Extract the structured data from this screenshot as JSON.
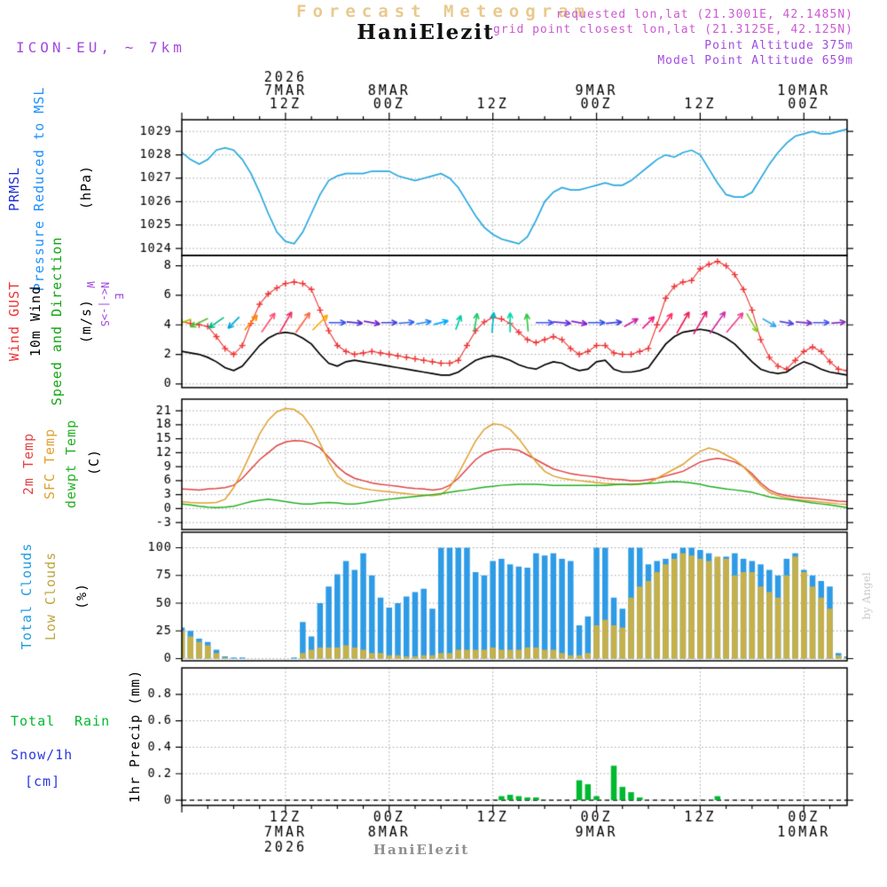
{
  "header": {
    "watermark": "Forecast Meteogram",
    "station": "HaniElezit",
    "requested": "requested lon,lat (21.3001E, 42.1485N)",
    "grid_point": "grid point closest lon,lat (21.3125E, 42.125N)",
    "point_altitude": "Point Altitude 375m",
    "model_altitude": "Model Point Altitude 659m",
    "model": "ICON-EU, ~ 7km"
  },
  "labels": {
    "pressure": {
      "l1": "PRMSL",
      "l2": "Pressure Reduced to MSL",
      "unit": "(hPa)"
    },
    "wind": {
      "l1": "Wind GUST",
      "l2": "10m Wind",
      "l3": "Speed and Direction",
      "unit": "(m/s)",
      "compass_ns": "N<-|->S",
      "compass_w": "W",
      "compass_e": "E"
    },
    "temperature": {
      "l1": "2m Temp",
      "l2": "SFC Temp",
      "l3": "dewpt Temp",
      "unit": "(C)"
    },
    "clouds": {
      "l1": "Total Clouds",
      "l2": "Low Clouds",
      "unit": "(%)"
    },
    "precip": {
      "l1": "Total",
      "l2": "Rain",
      "l3": "Snow/1h",
      "l4": "[cm]",
      "axis": "1hr Precip (mm)"
    }
  },
  "credit": "by Angel",
  "footer": {
    "station": "HaniElezit"
  },
  "time_axis": {
    "year": "2026",
    "start": "2026-03-07 00Z",
    "hours_span": 77,
    "major_tick_hours": [
      12,
      24,
      36,
      48,
      60,
      72
    ],
    "major_tick_labels": [
      "12Z",
      "00Z",
      "12Z",
      "00Z",
      "12Z",
      "00Z"
    ],
    "date_labels": [
      {
        "hour": 12,
        "text": "7MAR"
      },
      {
        "hour": 24,
        "text": "8MAR"
      },
      {
        "hour": 48,
        "text": "9MAR"
      },
      {
        "hour": 72,
        "text": "10MAR"
      }
    ],
    "minor_tick_step_hours": 3
  },
  "chart_data": [
    {
      "id": "pressure",
      "type": "line",
      "ylabel": "PRMSL Pressure Reduced to MSL (hPa)",
      "ylim": [
        1023.7,
        1029.5
      ],
      "yticks": [
        1024,
        1025,
        1026,
        1027,
        1028,
        1029
      ],
      "series": [
        {
          "name": "PRMSL",
          "color": "#29a9e0",
          "values": [
            1028.1,
            1027.8,
            1027.6,
            1027.8,
            1028.2,
            1028.3,
            1028.2,
            1027.8,
            1027.2,
            1026.4,
            1025.5,
            1024.7,
            1024.3,
            1024.2,
            1024.7,
            1025.5,
            1026.3,
            1026.9,
            1027.1,
            1027.2,
            1027.2,
            1027.2,
            1027.3,
            1027.3,
            1027.3,
            1027.1,
            1027.0,
            1026.9,
            1027.0,
            1027.1,
            1027.2,
            1027.0,
            1026.6,
            1026.0,
            1025.4,
            1024.9,
            1024.6,
            1024.4,
            1024.3,
            1024.2,
            1024.5,
            1025.2,
            1026.0,
            1026.4,
            1026.6,
            1026.5,
            1026.5,
            1026.6,
            1026.7,
            1026.8,
            1026.7,
            1026.7,
            1026.9,
            1027.2,
            1027.5,
            1027.8,
            1028.0,
            1027.9,
            1028.1,
            1028.2,
            1028.0,
            1027.4,
            1026.8,
            1026.3,
            1026.2,
            1026.2,
            1026.4,
            1027.0,
            1027.6,
            1028.1,
            1028.5,
            1028.8,
            1028.9,
            1029.0,
            1028.9,
            1028.9,
            1029.0,
            1029.1
          ]
        }
      ]
    },
    {
      "id": "wind",
      "type": "line+markers+arrows",
      "ylabel": "Wind GUST 10m Wind Speed and Direction (m/s)",
      "ylim": [
        -0.25,
        8.7
      ],
      "yticks": [
        0,
        2,
        4,
        6,
        8
      ],
      "series": [
        {
          "name": "Wind GUST",
          "color": "#ee3333",
          "marker": "+",
          "values": [
            4.2,
            4.1,
            4.0,
            3.9,
            3.2,
            2.4,
            2.0,
            2.6,
            4.1,
            5.4,
            6.1,
            6.5,
            6.8,
            6.9,
            6.8,
            6.4,
            5.0,
            3.6,
            2.6,
            2.2,
            2.0,
            2.1,
            2.2,
            2.1,
            2.0,
            1.9,
            1.8,
            1.7,
            1.6,
            1.5,
            1.4,
            1.4,
            1.6,
            2.6,
            3.6,
            4.2,
            4.5,
            4.4,
            4.1,
            3.5,
            3.0,
            2.8,
            3.0,
            3.2,
            3.0,
            2.4,
            2.0,
            2.2,
            2.6,
            2.6,
            2.1,
            2.0,
            2.0,
            2.2,
            2.4,
            4.0,
            5.8,
            6.6,
            6.9,
            7.0,
            7.8,
            8.1,
            8.3,
            8.0,
            7.4,
            6.4,
            5.0,
            3.0,
            1.8,
            1.2,
            1.0,
            1.6,
            2.2,
            2.5,
            2.2,
            1.5,
            1.0,
            0.9
          ]
        },
        {
          "name": "10m Wind Speed",
          "color": "#000000",
          "values": [
            2.2,
            2.1,
            2.0,
            1.8,
            1.5,
            1.1,
            0.9,
            1.2,
            1.9,
            2.6,
            3.1,
            3.4,
            3.5,
            3.4,
            3.1,
            2.7,
            2.0,
            1.4,
            1.2,
            1.5,
            1.6,
            1.5,
            1.4,
            1.3,
            1.2,
            1.1,
            1.0,
            0.9,
            0.8,
            0.7,
            0.6,
            0.6,
            0.8,
            1.2,
            1.6,
            1.8,
            1.9,
            1.8,
            1.6,
            1.3,
            1.1,
            1.0,
            1.3,
            1.5,
            1.4,
            1.1,
            0.9,
            1.0,
            1.5,
            1.6,
            1.0,
            0.8,
            0.8,
            0.9,
            1.1,
            1.9,
            2.7,
            3.2,
            3.5,
            3.6,
            3.7,
            3.6,
            3.4,
            3.1,
            2.7,
            2.1,
            1.5,
            1.0,
            0.8,
            0.7,
            0.8,
            1.2,
            1.5,
            1.3,
            1.0,
            0.8,
            0.7,
            0.6
          ]
        }
      ],
      "arrows": {
        "y_value": 4.15,
        "hours": [
          0,
          2,
          4,
          6,
          8,
          10,
          12,
          14,
          16,
          18,
          20,
          22,
          24,
          26,
          28,
          30,
          32,
          34,
          36,
          38,
          40,
          42,
          44,
          46,
          48,
          50,
          52,
          54,
          56,
          58,
          60,
          62,
          64,
          66,
          68,
          70,
          72,
          74,
          76
        ],
        "dir_toward_deg": [
          250,
          245,
          235,
          225,
          40,
          35,
          30,
          35,
          45,
          90,
          95,
          100,
          90,
          85,
          80,
          75,
          20,
          10,
          5,
          0,
          355,
          90,
          95,
          100,
          90,
          85,
          60,
          45,
          35,
          30,
          30,
          35,
          40,
          150,
          120,
          100,
          95,
          90,
          85
        ],
        "colors": [
          "#aacc00",
          "#55bb33",
          "#00bb88",
          "#00aadd",
          "#ff8800",
          "#ff5577",
          "#ee3366",
          "#ff6644",
          "#ffaa00",
          "#3355ee",
          "#5533cc",
          "#7722cc",
          "#4444dd",
          "#3366ee",
          "#2288ee",
          "#00aaff",
          "#00ccaa",
          "#22cc66",
          "#00bbcc",
          "#00ddaa",
          "#33cc44",
          "#4455ee",
          "#6633dd",
          "#8822cc",
          "#3355ee",
          "#4444dd",
          "#cc22aa",
          "#ee2288",
          "#ff3366",
          "#ee2255",
          "#dd2277",
          "#cc33aa",
          "#ee4488",
          "#88cc22",
          "#33aaee",
          "#5544dd",
          "#7733cc",
          "#4455ee",
          "#8833bb"
        ]
      }
    },
    {
      "id": "temperature",
      "type": "line",
      "ylabel": "2m Temp SFC Temp dewpt Temp (C)",
      "ylim": [
        -4.5,
        23.5
      ],
      "yticks": [
        -3,
        0,
        3,
        6,
        9,
        12,
        15,
        18,
        21
      ],
      "series": [
        {
          "name": "2m Temp",
          "color": "#e04444",
          "values": [
            4.2,
            4.1,
            4.0,
            4.2,
            4.3,
            4.5,
            5.0,
            6.5,
            8.5,
            10.5,
            12.0,
            13.5,
            14.3,
            14.6,
            14.5,
            14.0,
            13.0,
            11.0,
            9.0,
            7.5,
            6.5,
            6.0,
            5.5,
            5.2,
            5.0,
            4.8,
            4.5,
            4.3,
            4.2,
            4.0,
            4.2,
            5.0,
            6.5,
            8.5,
            10.5,
            11.8,
            12.5,
            12.8,
            12.8,
            12.5,
            11.5,
            10.5,
            9.5,
            8.5,
            8.0,
            7.5,
            7.2,
            7.0,
            6.8,
            6.5,
            6.3,
            6.2,
            6.0,
            6.0,
            6.2,
            6.5,
            7.0,
            7.5,
            8.0,
            9.0,
            10.0,
            10.5,
            10.8,
            10.5,
            10.0,
            9.0,
            7.5,
            5.5,
            4.0,
            3.2,
            2.8,
            2.5,
            2.3,
            2.2,
            2.0,
            1.8,
            1.6,
            1.5
          ]
        },
        {
          "name": "SFC Temp",
          "color": "#e0a030",
          "values": [
            1.5,
            1.3,
            1.2,
            1.2,
            1.3,
            2.0,
            4.5,
            8.0,
            12.0,
            16.0,
            19.0,
            20.8,
            21.5,
            21.3,
            20.0,
            17.5,
            14.0,
            10.0,
            7.0,
            5.5,
            4.8,
            4.3,
            4.0,
            3.8,
            3.6,
            3.4,
            3.2,
            3.0,
            2.9,
            2.8,
            3.0,
            4.5,
            7.5,
            11.0,
            14.5,
            17.0,
            18.2,
            18.0,
            17.0,
            15.0,
            12.5,
            10.0,
            8.0,
            7.0,
            6.5,
            6.2,
            6.0,
            5.8,
            5.6,
            5.4,
            5.3,
            5.2,
            5.1,
            5.2,
            5.5,
            6.5,
            7.5,
            8.5,
            9.5,
            11.0,
            12.3,
            13.0,
            12.5,
            11.5,
            10.5,
            9.0,
            7.0,
            5.0,
            3.5,
            2.8,
            2.3,
            2.0,
            1.8,
            1.6,
            1.4,
            1.2,
            1.0,
            0.9
          ]
        },
        {
          "name": "dewpt Temp",
          "color": "#22b022",
          "values": [
            1.0,
            0.8,
            0.5,
            0.3,
            0.2,
            0.3,
            0.5,
            1.0,
            1.5,
            1.8,
            2.0,
            1.8,
            1.5,
            1.2,
            1.0,
            1.0,
            1.2,
            1.3,
            1.2,
            1.0,
            1.0,
            1.2,
            1.5,
            1.8,
            2.0,
            2.2,
            2.4,
            2.6,
            2.8,
            3.0,
            3.2,
            3.5,
            3.8,
            4.0,
            4.3,
            4.6,
            4.8,
            5.0,
            5.1,
            5.2,
            5.2,
            5.2,
            5.1,
            5.0,
            5.0,
            5.0,
            5.0,
            5.0,
            5.0,
            5.0,
            5.1,
            5.2,
            5.2,
            5.3,
            5.4,
            5.5,
            5.7,
            5.8,
            5.7,
            5.5,
            5.2,
            4.8,
            4.5,
            4.2,
            4.0,
            3.8,
            3.5,
            3.0,
            2.5,
            2.2,
            2.0,
            1.8,
            1.5,
            1.2,
            1.0,
            0.8,
            0.5,
            0.2
          ]
        }
      ]
    },
    {
      "id": "clouds",
      "type": "bar",
      "ylabel": "Total Clouds Low Clouds (%)",
      "ylim": [
        -2,
        114
      ],
      "yticks": [
        0,
        25,
        50,
        75,
        100
      ],
      "series": [
        {
          "name": "Total Clouds",
          "color": "#2e9be6",
          "values": [
            28,
            25,
            18,
            15,
            8,
            2,
            1,
            1,
            0,
            0,
            0,
            0,
            0,
            1,
            33,
            20,
            50,
            65,
            76,
            88,
            80,
            95,
            75,
            55,
            46,
            50,
            56,
            60,
            63,
            45,
            100,
            100,
            100,
            100,
            78,
            75,
            88,
            90,
            85,
            83,
            82,
            95,
            93,
            95,
            90,
            88,
            30,
            38,
            100,
            100,
            55,
            45,
            100,
            100,
            85,
            88,
            90,
            95,
            100,
            100,
            98,
            95,
            90,
            92,
            95,
            90,
            88,
            85,
            80,
            75,
            90,
            95,
            80,
            75,
            70,
            65,
            5,
            2
          ]
        },
        {
          "name": "Low Clouds",
          "color": "#c6b04a",
          "values": [
            25,
            20,
            15,
            12,
            5,
            1,
            0,
            0,
            0,
            0,
            0,
            0,
            0,
            0,
            5,
            8,
            10,
            10,
            10,
            12,
            10,
            8,
            5,
            5,
            3,
            3,
            2,
            2,
            3,
            3,
            5,
            5,
            8,
            8,
            8,
            8,
            10,
            8,
            8,
            8,
            10,
            10,
            8,
            8,
            5,
            3,
            3,
            5,
            30,
            35,
            30,
            28,
            55,
            65,
            70,
            78,
            85,
            90,
            95,
            93,
            90,
            88,
            92,
            90,
            75,
            78,
            78,
            65,
            60,
            55,
            75,
            92,
            78,
            65,
            55,
            45,
            3,
            1
          ]
        }
      ]
    },
    {
      "id": "precip",
      "type": "bar",
      "ylabel": "1hr Precip (mm)",
      "ylim": [
        -0.04,
        1.0
      ],
      "yticks": [
        0,
        0.2,
        0.4,
        0.6,
        0.8
      ],
      "series": [
        {
          "name": "Total Rain",
          "color": "#00b830",
          "values": [
            0,
            0,
            0,
            0,
            0,
            0,
            0,
            0,
            0,
            0,
            0,
            0,
            0,
            0,
            0,
            0,
            0,
            0,
            0,
            0,
            0,
            0,
            0,
            0,
            0,
            0,
            0,
            0,
            0,
            0,
            0,
            0,
            0,
            0,
            0,
            0,
            0,
            0.03,
            0.04,
            0.03,
            0.02,
            0.02,
            0,
            0,
            0,
            0,
            0.15,
            0.12,
            0.03,
            0,
            0.26,
            0.1,
            0.06,
            0.02,
            0,
            0,
            0,
            0,
            0,
            0,
            0,
            0,
            0.03,
            0,
            0,
            0,
            0,
            0,
            0,
            0,
            0,
            0,
            0,
            0,
            0,
            0,
            0,
            0
          ]
        },
        {
          "name": "Snow/1h",
          "unit": "cm",
          "color": "#2838e0",
          "values_all_zero": true
        }
      ]
    }
  ]
}
